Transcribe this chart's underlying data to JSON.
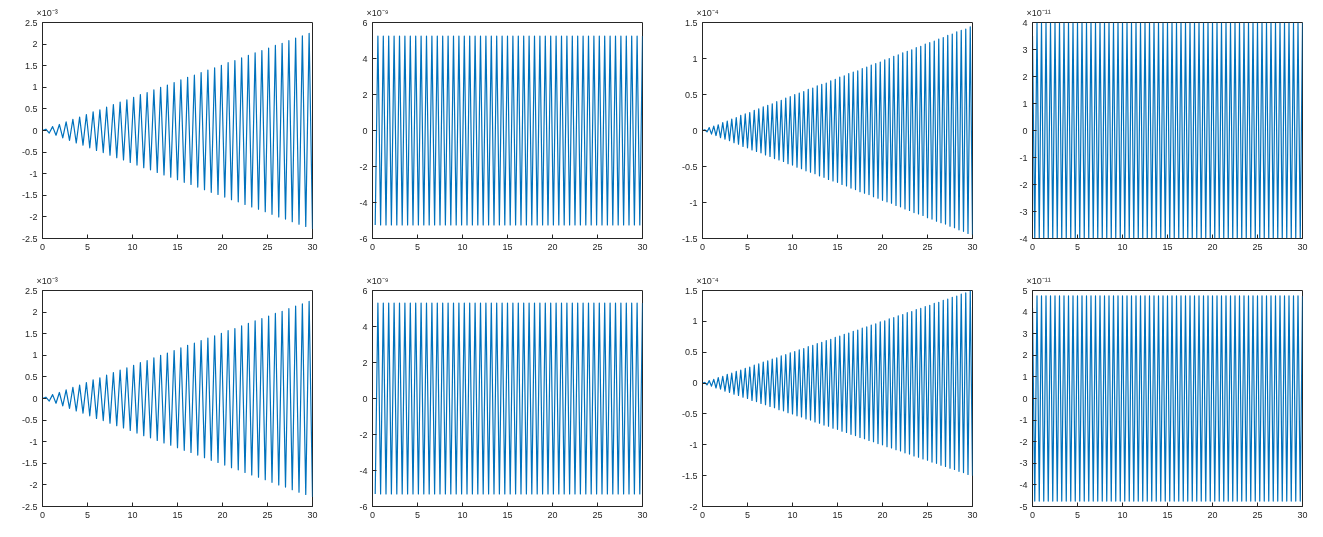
{
  "chart_data": [
    {
      "type": "line",
      "color": "#0072bd",
      "annotations": [
        "×10⁻³"
      ],
      "xlim": [
        0,
        30
      ],
      "xticks": [
        0,
        5,
        10,
        15,
        20,
        25,
        30
      ],
      "ylim": [
        -2.5,
        2.5
      ],
      "yticks": [
        -2.5,
        -2,
        -1.5,
        -1,
        -0.5,
        0,
        0.5,
        1,
        1.5,
        2,
        2.5
      ],
      "x": [
        0,
        0.375,
        0.75,
        1.125,
        1.5,
        1.875,
        2.25,
        2.625,
        3,
        3.375,
        3.75,
        4.125,
        4.5,
        4.875,
        5.25,
        5.625,
        6,
        6.375,
        6.75,
        7.125,
        7.5,
        7.875,
        8.25,
        8.625,
        9,
        9.375,
        9.75,
        10.125,
        10.5,
        10.875,
        11.25,
        11.625,
        12,
        12.375,
        12.75,
        13.125,
        13.5,
        13.875,
        14.25,
        14.625,
        15,
        15.375,
        15.75,
        16.125,
        16.5,
        16.875,
        17.25,
        17.625,
        18,
        18.375,
        18.75,
        19.125,
        19.5,
        19.875,
        20.25,
        20.625,
        21,
        21.375,
        21.75,
        22.125,
        22.5,
        22.875,
        23.25,
        23.625,
        24,
        24.375,
        24.75,
        25.125,
        25.5,
        25.875,
        26.25,
        26.625,
        27,
        27.375,
        27.75,
        28.125,
        28.5,
        28.875,
        29.25,
        29.625,
        30
      ],
      "values": [
        0,
        0.03,
        -0.06,
        0.09,
        -0.11,
        0.14,
        -0.17,
        0.2,
        -0.23,
        0.26,
        -0.29,
        0.31,
        -0.34,
        0.37,
        -0.4,
        0.43,
        -0.46,
        0.48,
        -0.51,
        0.54,
        -0.57,
        0.6,
        -0.63,
        0.66,
        -0.68,
        0.71,
        -0.74,
        0.77,
        -0.8,
        0.83,
        -0.86,
        0.88,
        -0.91,
        0.94,
        -0.97,
        1.0,
        -1.03,
        1.05,
        -1.08,
        1.11,
        -1.14,
        1.17,
        -1.2,
        1.23,
        -1.25,
        1.28,
        -1.31,
        1.34,
        -1.37,
        1.4,
        -1.43,
        1.45,
        -1.48,
        1.51,
        -1.54,
        1.57,
        -1.6,
        1.62,
        -1.65,
        1.68,
        -1.71,
        1.74,
        -1.77,
        1.8,
        -1.82,
        1.85,
        -1.88,
        1.91,
        -1.94,
        1.97,
        -2.0,
        2.02,
        -2.05,
        2.08,
        -2.11,
        2.14,
        -2.17,
        2.19,
        -2.22,
        2.25,
        -2.28
      ]
    },
    {
      "type": "line",
      "color": "#0072bd",
      "annotations": [
        "×10⁻⁹"
      ],
      "xlim": [
        0,
        30
      ],
      "xticks": [
        0,
        5,
        10,
        15,
        20,
        25,
        30
      ],
      "ylim": [
        -6,
        6
      ],
      "yticks": [
        -6,
        -4,
        -2,
        0,
        2,
        4,
        6
      ],
      "x": [
        0.3,
        0.6,
        0.9,
        1.2,
        1.5,
        1.8,
        2.1,
        2.4,
        2.7,
        3,
        3.3,
        3.6,
        3.9,
        4.2,
        4.5,
        4.8,
        5.1,
        5.4,
        5.7,
        6,
        6.3,
        6.6,
        6.9,
        7.2,
        7.5,
        7.8,
        8.1,
        8.4,
        8.7,
        9,
        9.3,
        9.6,
        9.9,
        10.2,
        10.5,
        10.8,
        11.1,
        11.4,
        11.7,
        12,
        12.3,
        12.6,
        12.9,
        13.2,
        13.5,
        13.8,
        14.1,
        14.4,
        14.7,
        15,
        15.3,
        15.6,
        15.9,
        16.2,
        16.5,
        16.8,
        17.1,
        17.4,
        17.7,
        18,
        18.3,
        18.6,
        18.9,
        19.2,
        19.5,
        19.8,
        20.1,
        20.4,
        20.7,
        21,
        21.3,
        21.6,
        21.9,
        22.2,
        22.5,
        22.8,
        23.1,
        23.4,
        23.7,
        24,
        24.3,
        24.6,
        24.9,
        25.2,
        25.5,
        25.8,
        26.1,
        26.4,
        26.7,
        27,
        27.3,
        27.6,
        27.9,
        28.2,
        28.5,
        28.8,
        29.1,
        29.4,
        29.7,
        30
      ],
      "values": [
        -5.25,
        5.25,
        -5.25,
        5.25,
        -5.25,
        5.25,
        -5.25,
        5.25,
        -5.25,
        5.25,
        -5.25,
        5.25,
        -5.25,
        5.25,
        -5.25,
        5.25,
        -5.25,
        5.25,
        -5.25,
        5.25,
        -5.25,
        5.25,
        -5.25,
        5.25,
        -5.25,
        5.25,
        -5.25,
        5.25,
        -5.25,
        5.25,
        -5.25,
        5.25,
        -5.25,
        5.25,
        -5.25,
        5.25,
        -5.25,
        5.25,
        -5.25,
        5.25,
        -5.25,
        5.25,
        -5.25,
        5.25,
        -5.25,
        5.25,
        -5.25,
        5.25,
        -5.25,
        5.25,
        -5.25,
        5.25,
        -5.25,
        5.25,
        -5.25,
        5.25,
        -5.25,
        5.25,
        -5.25,
        5.25,
        -5.25,
        5.25,
        -5.25,
        5.25,
        -5.25,
        5.25,
        -5.25,
        5.25,
        -5.25,
        5.25,
        -5.25,
        5.25,
        -5.25,
        5.25,
        -5.25,
        5.25,
        -5.25,
        5.25,
        -5.25,
        5.25,
        -5.25,
        5.25,
        -5.25,
        5.25,
        -5.25,
        5.25,
        -5.25,
        5.25,
        -5.25,
        5.25,
        -5.25,
        5.25,
        -5.25,
        5.25,
        -5.25,
        5.25,
        -5.25,
        5.25,
        -5.25,
        5.25
      ]
    },
    {
      "type": "line",
      "color": "#0072bd",
      "annotations": [
        "×10⁻⁴"
      ],
      "xlim": [
        0,
        30
      ],
      "xticks": [
        0,
        5,
        10,
        15,
        20,
        25,
        30
      ],
      "ylim": [
        -1.5,
        1.5
      ],
      "yticks": [
        -1.5,
        -1,
        -0.5,
        0,
        0.5,
        1,
        1.5
      ],
      "x": [
        0,
        0.25,
        0.5,
        0.75,
        1,
        1.25,
        1.5,
        1.75,
        2,
        2.25,
        2.5,
        2.75,
        3,
        3.25,
        3.5,
        3.75,
        4,
        4.25,
        4.5,
        4.75,
        5,
        5.25,
        5.5,
        5.75,
        6,
        6.25,
        6.5,
        6.75,
        7,
        7.25,
        7.5,
        7.75,
        8,
        8.25,
        8.5,
        8.75,
        9,
        9.25,
        9.5,
        9.75,
        10,
        10.25,
        10.5,
        10.75,
        11,
        11.25,
        11.5,
        11.75,
        12,
        12.25,
        12.5,
        12.75,
        13,
        13.25,
        13.5,
        13.75,
        14,
        14.25,
        14.5,
        14.75,
        15,
        15.25,
        15.5,
        15.75,
        16,
        16.25,
        16.5,
        16.75,
        17,
        17.25,
        17.5,
        17.75,
        18,
        18.25,
        18.5,
        18.75,
        19,
        19.25,
        19.5,
        19.75,
        20,
        20.25,
        20.5,
        20.75,
        21,
        21.25,
        21.5,
        21.75,
        22,
        22.25,
        22.5,
        22.75,
        23,
        23.25,
        23.5,
        23.75,
        24,
        24.25,
        24.5,
        24.75,
        25,
        25.25,
        25.5,
        25.75,
        26,
        26.25,
        26.5,
        26.75,
        27,
        27.25,
        27.5,
        27.75,
        28,
        28.25,
        28.5,
        28.75,
        29,
        29.25,
        29.5,
        29.75,
        30
      ],
      "values": [
        0,
        0.01,
        -0.02,
        0.04,
        -0.05,
        0.06,
        -0.07,
        0.08,
        -0.1,
        0.11,
        -0.12,
        0.13,
        -0.14,
        0.16,
        -0.17,
        0.18,
        -0.19,
        0.21,
        -0.22,
        0.23,
        -0.24,
        0.25,
        -0.27,
        0.28,
        -0.29,
        0.3,
        -0.31,
        0.33,
        -0.34,
        0.35,
        -0.36,
        0.37,
        -0.39,
        0.4,
        -0.41,
        0.42,
        -0.43,
        0.45,
        -0.46,
        0.47,
        -0.48,
        0.5,
        -0.51,
        0.52,
        -0.53,
        0.54,
        -0.56,
        0.57,
        -0.58,
        0.59,
        -0.6,
        0.62,
        -0.63,
        0.64,
        -0.65,
        0.66,
        -0.68,
        0.69,
        -0.7,
        0.71,
        -0.72,
        0.74,
        -0.75,
        0.76,
        -0.77,
        0.79,
        -0.8,
        0.81,
        -0.82,
        0.83,
        -0.85,
        0.86,
        -0.87,
        0.88,
        -0.89,
        0.91,
        -0.92,
        0.93,
        -0.94,
        0.95,
        -0.97,
        0.98,
        -0.99,
        1.0,
        -1.01,
        1.03,
        -1.04,
        1.05,
        -1.06,
        1.08,
        -1.09,
        1.1,
        -1.11,
        1.12,
        -1.14,
        1.15,
        -1.16,
        1.17,
        -1.18,
        1.2,
        -1.21,
        1.22,
        -1.23,
        1.24,
        -1.26,
        1.27,
        -1.28,
        1.29,
        -1.3,
        1.32,
        -1.33,
        1.34,
        -1.35,
        1.37,
        -1.38,
        1.39,
        -1.4,
        1.41,
        -1.43,
        1.44,
        -1.45
      ]
    },
    {
      "type": "line",
      "color": "#0072bd",
      "annotations": [
        "×10⁻¹¹"
      ],
      "xlim": [
        0,
        30
      ],
      "xticks": [
        0,
        5,
        10,
        15,
        20,
        25,
        30
      ],
      "ylim": [
        -4,
        4
      ],
      "yticks": [
        -4,
        -3,
        -2,
        -1,
        0,
        1,
        2,
        3,
        4
      ],
      "x": [
        0,
        0.25,
        0.5,
        0.75,
        1,
        1.25,
        1.5,
        1.75,
        2,
        2.25,
        2.5,
        2.75,
        3,
        3.25,
        3.5,
        3.75,
        4,
        4.25,
        4.5,
        4.75,
        5,
        5.25,
        5.5,
        5.75,
        6,
        6.25,
        6.5,
        6.75,
        7,
        7.25,
        7.5,
        7.75,
        8,
        8.25,
        8.5,
        8.75,
        9,
        9.25,
        9.5,
        9.75,
        10,
        10.25,
        10.5,
        10.75,
        11,
        11.25,
        11.5,
        11.75,
        12,
        12.25,
        12.5,
        12.75,
        13,
        13.25,
        13.5,
        13.75,
        14,
        14.25,
        14.5,
        14.75,
        15,
        15.25,
        15.5,
        15.75,
        16,
        16.25,
        16.5,
        16.75,
        17,
        17.25,
        17.5,
        17.75,
        18,
        18.25,
        18.5,
        18.75,
        19,
        19.25,
        19.5,
        19.75,
        20,
        20.25,
        20.5,
        20.75,
        21,
        21.25,
        21.5,
        21.75,
        22,
        22.25,
        22.5,
        22.75,
        23,
        23.25,
        23.5,
        23.75,
        24,
        24.25,
        24.5,
        24.75,
        25,
        25.25,
        25.5,
        25.75,
        26,
        26.25,
        26.5,
        26.75,
        27,
        27.25,
        27.5,
        27.75,
        28,
        28.25,
        28.5,
        28.75,
        29,
        29.25,
        29.5,
        29.75,
        30
      ],
      "values": [
        3.5,
        -3.98,
        3.98,
        -3.98,
        3.98,
        -3.98,
        3.98,
        -3.98,
        3.98,
        -3.98,
        3.98,
        -3.98,
        3.98,
        -3.98,
        3.98,
        -3.98,
        3.98,
        -3.98,
        3.98,
        -3.98,
        3.98,
        -3.98,
        3.98,
        -3.98,
        3.98,
        -3.98,
        3.98,
        -3.98,
        3.98,
        -3.98,
        3.98,
        -3.98,
        3.98,
        -3.98,
        3.98,
        -3.98,
        3.98,
        -3.98,
        3.98,
        -3.98,
        3.98,
        -3.98,
        3.98,
        -3.98,
        3.98,
        -3.98,
        3.98,
        -3.98,
        3.98,
        -3.98,
        3.98,
        -3.98,
        3.98,
        -3.98,
        3.98,
        -3.98,
        3.98,
        -3.98,
        3.98,
        -3.98,
        3.98,
        -3.98,
        3.98,
        -3.98,
        3.98,
        -3.98,
        3.98,
        -3.98,
        3.98,
        -3.98,
        3.98,
        -3.98,
        3.98,
        -3.98,
        3.98,
        -3.98,
        3.98,
        -3.98,
        3.98,
        -3.98,
        3.98,
        -3.98,
        3.98,
        -3.98,
        3.98,
        -3.98,
        3.98,
        -3.98,
        3.98,
        -3.98,
        3.98,
        -3.98,
        3.98,
        -3.98,
        3.98,
        -3.98,
        3.98,
        -3.98,
        3.98,
        -3.98,
        3.98,
        -3.98,
        3.98,
        -3.98,
        3.98,
        -3.98,
        3.98,
        -3.98,
        3.98,
        -3.98,
        3.98,
        -3.98,
        3.98,
        -3.98,
        3.98,
        -3.98,
        3.98,
        -3.98,
        3.98,
        -3.98,
        3.98
      ]
    },
    {
      "type": "line",
      "color": "#0072bd",
      "annotations": [
        "×10⁻³"
      ],
      "xlim": [
        0,
        30
      ],
      "xticks": [
        0,
        5,
        10,
        15,
        20,
        25,
        30
      ],
      "ylim": [
        -2.5,
        2.5
      ],
      "yticks": [
        -2.5,
        -2,
        -1.5,
        -1,
        -0.5,
        0,
        0.5,
        1,
        1.5,
        2,
        2.5
      ],
      "x": [
        0,
        0.375,
        0.75,
        1.125,
        1.5,
        1.875,
        2.25,
        2.625,
        3,
        3.375,
        3.75,
        4.125,
        4.5,
        4.875,
        5.25,
        5.625,
        6,
        6.375,
        6.75,
        7.125,
        7.5,
        7.875,
        8.25,
        8.625,
        9,
        9.375,
        9.75,
        10.125,
        10.5,
        10.875,
        11.25,
        11.625,
        12,
        12.375,
        12.75,
        13.125,
        13.5,
        13.875,
        14.25,
        14.625,
        15,
        15.375,
        15.75,
        16.125,
        16.5,
        16.875,
        17.25,
        17.625,
        18,
        18.375,
        18.75,
        19.125,
        19.5,
        19.875,
        20.25,
        20.625,
        21,
        21.375,
        21.75,
        22.125,
        22.5,
        22.875,
        23.25,
        23.625,
        24,
        24.375,
        24.75,
        25.125,
        25.5,
        25.875,
        26.25,
        26.625,
        27,
        27.375,
        27.75,
        28.125,
        28.5,
        28.875,
        29.25,
        29.625,
        30
      ],
      "values": [
        0,
        0.03,
        -0.06,
        0.09,
        -0.11,
        0.14,
        -0.17,
        0.2,
        -0.23,
        0.26,
        -0.29,
        0.31,
        -0.34,
        0.37,
        -0.4,
        0.43,
        -0.46,
        0.48,
        -0.51,
        0.54,
        -0.57,
        0.6,
        -0.63,
        0.66,
        -0.68,
        0.71,
        -0.74,
        0.77,
        -0.8,
        0.83,
        -0.86,
        0.88,
        -0.91,
        0.94,
        -0.97,
        1.0,
        -1.03,
        1.05,
        -1.08,
        1.11,
        -1.14,
        1.17,
        -1.2,
        1.23,
        -1.25,
        1.28,
        -1.31,
        1.34,
        -1.37,
        1.4,
        -1.43,
        1.45,
        -1.48,
        1.51,
        -1.54,
        1.57,
        -1.6,
        1.62,
        -1.65,
        1.68,
        -1.71,
        1.74,
        -1.77,
        1.8,
        -1.82,
        1.85,
        -1.88,
        1.91,
        -1.94,
        1.97,
        -2.0,
        2.02,
        -2.05,
        2.08,
        -2.11,
        2.14,
        -2.17,
        2.19,
        -2.22,
        2.25,
        -2.28
      ]
    },
    {
      "type": "line",
      "color": "#0072bd",
      "annotations": [
        "×10⁻⁹"
      ],
      "xlim": [
        0,
        30
      ],
      "xticks": [
        0,
        5,
        10,
        15,
        20,
        25,
        30
      ],
      "ylim": [
        -6,
        6
      ],
      "yticks": [
        -6,
        -4,
        -2,
        0,
        2,
        4,
        6
      ],
      "x": [
        0.3,
        0.6,
        0.9,
        1.2,
        1.5,
        1.8,
        2.1,
        2.4,
        2.7,
        3,
        3.3,
        3.6,
        3.9,
        4.2,
        4.5,
        4.8,
        5.1,
        5.4,
        5.7,
        6,
        6.3,
        6.6,
        6.9,
        7.2,
        7.5,
        7.8,
        8.1,
        8.4,
        8.7,
        9,
        9.3,
        9.6,
        9.9,
        10.2,
        10.5,
        10.8,
        11.1,
        11.4,
        11.7,
        12,
        12.3,
        12.6,
        12.9,
        13.2,
        13.5,
        13.8,
        14.1,
        14.4,
        14.7,
        15,
        15.3,
        15.6,
        15.9,
        16.2,
        16.5,
        16.8,
        17.1,
        17.4,
        17.7,
        18,
        18.3,
        18.6,
        18.9,
        19.2,
        19.5,
        19.8,
        20.1,
        20.4,
        20.7,
        21,
        21.3,
        21.6,
        21.9,
        22.2,
        22.5,
        22.8,
        23.1,
        23.4,
        23.7,
        24,
        24.3,
        24.6,
        24.9,
        25.2,
        25.5,
        25.8,
        26.1,
        26.4,
        26.7,
        27,
        27.3,
        27.6,
        27.9,
        28.2,
        28.5,
        28.8,
        29.1,
        29.4,
        29.7,
        30
      ],
      "values": [
        -5.3,
        5.3,
        -5.3,
        5.3,
        -5.3,
        5.3,
        -5.3,
        5.3,
        -5.3,
        5.3,
        -5.3,
        5.3,
        -5.3,
        5.3,
        -5.3,
        5.3,
        -5.3,
        5.3,
        -5.3,
        5.3,
        -5.3,
        5.3,
        -5.3,
        5.3,
        -5.3,
        5.3,
        -5.3,
        5.3,
        -5.3,
        5.3,
        -5.3,
        5.3,
        -5.3,
        5.3,
        -5.3,
        5.3,
        -5.3,
        5.3,
        -5.3,
        5.3,
        -5.3,
        5.3,
        -5.3,
        5.3,
        -5.3,
        5.3,
        -5.3,
        5.3,
        -5.3,
        5.3,
        -5.3,
        5.3,
        -5.3,
        5.3,
        -5.3,
        5.3,
        -5.3,
        5.3,
        -5.3,
        5.3,
        -5.3,
        5.3,
        -5.3,
        5.3,
        -5.3,
        5.3,
        -5.3,
        5.3,
        -5.3,
        5.3,
        -5.3,
        5.3,
        -5.3,
        5.3,
        -5.3,
        5.3,
        -5.3,
        5.3,
        -5.3,
        5.3,
        -5.3,
        5.3,
        -5.3,
        5.3,
        -5.3,
        5.3,
        -5.3,
        5.3,
        -5.3,
        5.3,
        -5.3,
        5.3,
        -5.3,
        5.3,
        -5.3,
        5.3,
        -5.3,
        5.3,
        -5.3,
        5.3
      ]
    },
    {
      "type": "line",
      "color": "#0072bd",
      "annotations": [
        "×10⁻⁴"
      ],
      "xlim": [
        0,
        30
      ],
      "xticks": [
        0,
        5,
        10,
        15,
        20,
        25,
        30
      ],
      "ylim": [
        -2,
        1.5
      ],
      "yticks": [
        -2,
        -1.5,
        -1,
        -0.5,
        0,
        0.5,
        1,
        1.5
      ],
      "x": [
        0,
        0.25,
        0.5,
        0.75,
        1,
        1.25,
        1.5,
        1.75,
        2,
        2.25,
        2.5,
        2.75,
        3,
        3.25,
        3.5,
        3.75,
        4,
        4.25,
        4.5,
        4.75,
        5,
        5.25,
        5.5,
        5.75,
        6,
        6.25,
        6.5,
        6.75,
        7,
        7.25,
        7.5,
        7.75,
        8,
        8.25,
        8.5,
        8.75,
        9,
        9.25,
        9.5,
        9.75,
        10,
        10.25,
        10.5,
        10.75,
        11,
        11.25,
        11.5,
        11.75,
        12,
        12.25,
        12.5,
        12.75,
        13,
        13.25,
        13.5,
        13.75,
        14,
        14.25,
        14.5,
        14.75,
        15,
        15.25,
        15.5,
        15.75,
        16,
        16.25,
        16.5,
        16.75,
        17,
        17.25,
        17.5,
        17.75,
        18,
        18.25,
        18.5,
        18.75,
        19,
        19.25,
        19.5,
        19.75,
        20,
        20.25,
        20.5,
        20.75,
        21,
        21.25,
        21.5,
        21.75,
        22,
        22.25,
        22.5,
        22.75,
        23,
        23.25,
        23.5,
        23.75,
        24,
        24.25,
        24.5,
        24.75,
        25,
        25.25,
        25.5,
        25.75,
        26,
        26.25,
        26.5,
        26.75,
        27,
        27.25,
        27.5,
        27.75,
        28,
        28.25,
        28.5,
        28.75,
        29,
        29.25,
        29.5,
        29.75,
        30
      ],
      "values": [
        0,
        0.01,
        -0.03,
        0.04,
        -0.05,
        0.06,
        -0.08,
        0.09,
        -0.1,
        0.11,
        -0.13,
        0.14,
        -0.15,
        0.16,
        -0.18,
        0.19,
        -0.2,
        0.21,
        -0.23,
        0.24,
        -0.25,
        0.26,
        -0.28,
        0.29,
        -0.3,
        0.31,
        -0.33,
        0.34,
        -0.35,
        0.36,
        -0.38,
        0.39,
        -0.4,
        0.41,
        -0.43,
        0.44,
        -0.45,
        0.46,
        -0.48,
        0.49,
        -0.5,
        0.51,
        -0.53,
        0.54,
        -0.55,
        0.56,
        -0.58,
        0.59,
        -0.6,
        0.61,
        -0.63,
        0.64,
        -0.65,
        0.66,
        -0.68,
        0.69,
        -0.7,
        0.71,
        -0.73,
        0.74,
        -0.75,
        0.76,
        -0.78,
        0.79,
        -0.8,
        0.81,
        -0.83,
        0.84,
        -0.85,
        0.86,
        -0.88,
        0.89,
        -0.9,
        0.91,
        -0.93,
        0.94,
        -0.95,
        0.96,
        -0.98,
        0.99,
        -1.0,
        1.01,
        -1.03,
        1.04,
        -1.05,
        1.06,
        -1.08,
        1.09,
        -1.1,
        1.11,
        -1.13,
        1.14,
        -1.15,
        1.16,
        -1.18,
        1.19,
        -1.2,
        1.21,
        -1.23,
        1.24,
        -1.25,
        1.26,
        -1.28,
        1.29,
        -1.3,
        1.31,
        -1.33,
        1.34,
        -1.35,
        1.36,
        -1.38,
        1.39,
        -1.4,
        1.41,
        -1.43,
        1.44,
        -1.45,
        1.46,
        -1.48,
        1.49,
        -1.5
      ]
    },
    {
      "type": "line",
      "color": "#0072bd",
      "annotations": [
        "×10⁻¹¹"
      ],
      "xlim": [
        0,
        30
      ],
      "xticks": [
        0,
        5,
        10,
        15,
        20,
        25,
        30
      ],
      "ylim": [
        -5,
        5
      ],
      "yticks": [
        -5,
        -4,
        -3,
        -2,
        -1,
        0,
        1,
        2,
        3,
        4,
        5
      ],
      "x": [
        0,
        0.25,
        0.5,
        0.75,
        1,
        1.25,
        1.5,
        1.75,
        2,
        2.25,
        2.5,
        2.75,
        3,
        3.25,
        3.5,
        3.75,
        4,
        4.25,
        4.5,
        4.75,
        5,
        5.25,
        5.5,
        5.75,
        6,
        6.25,
        6.5,
        6.75,
        7,
        7.25,
        7.5,
        7.75,
        8,
        8.25,
        8.5,
        8.75,
        9,
        9.25,
        9.5,
        9.75,
        10,
        10.25,
        10.5,
        10.75,
        11,
        11.25,
        11.5,
        11.75,
        12,
        12.25,
        12.5,
        12.75,
        13,
        13.25,
        13.5,
        13.75,
        14,
        14.25,
        14.5,
        14.75,
        15,
        15.25,
        15.5,
        15.75,
        16,
        16.25,
        16.5,
        16.75,
        17,
        17.25,
        17.5,
        17.75,
        18,
        18.25,
        18.5,
        18.75,
        19,
        19.25,
        19.5,
        19.75,
        20,
        20.25,
        20.5,
        20.75,
        21,
        21.25,
        21.5,
        21.75,
        22,
        22.25,
        22.5,
        22.75,
        23,
        23.25,
        23.5,
        23.75,
        24,
        24.25,
        24.5,
        24.75,
        25,
        25.25,
        25.5,
        25.75,
        26,
        26.25,
        26.5,
        26.75,
        27,
        27.25,
        27.5,
        27.75,
        28,
        28.25,
        28.5,
        28.75,
        29,
        29.25,
        29.5,
        29.75,
        30
      ],
      "values": [
        4.2,
        -4.75,
        4.75,
        -4.75,
        4.75,
        -4.75,
        4.75,
        -4.75,
        4.75,
        -4.75,
        4.75,
        -4.75,
        4.75,
        -4.75,
        4.75,
        -4.75,
        4.75,
        -4.75,
        4.75,
        -4.75,
        4.75,
        -4.75,
        4.75,
        -4.75,
        4.75,
        -4.75,
        4.75,
        -4.75,
        4.75,
        -4.75,
        4.75,
        -4.75,
        4.75,
        -4.75,
        4.75,
        -4.75,
        4.75,
        -4.75,
        4.75,
        -4.75,
        4.75,
        -4.75,
        4.75,
        -4.75,
        4.75,
        -4.75,
        4.75,
        -4.75,
        4.75,
        -4.75,
        4.75,
        -4.75,
        4.75,
        -4.75,
        4.75,
        -4.75,
        4.75,
        -4.75,
        4.75,
        -4.75,
        4.75,
        -4.75,
        4.75,
        -4.75,
        4.75,
        -4.75,
        4.75,
        -4.75,
        4.75,
        -4.75,
        4.75,
        -4.75,
        4.75,
        -4.75,
        4.75,
        -4.75,
        4.75,
        -4.75,
        4.75,
        -4.75,
        4.75,
        -4.75,
        4.75,
        -4.75,
        4.75,
        -4.75,
        4.75,
        -4.75,
        4.75,
        -4.75,
        4.75,
        -4.75,
        4.75,
        -4.75,
        4.75,
        -4.75,
        4.75,
        -4.75,
        4.75,
        -4.75,
        4.75,
        -4.75,
        4.75,
        -4.75,
        4.75,
        -4.75,
        4.75,
        -4.75,
        4.75,
        -4.75,
        4.75,
        -4.75,
        4.75,
        -4.75,
        4.75,
        -4.75,
        4.75,
        -4.75,
        4.75,
        -4.75,
        4.75
      ]
    }
  ]
}
